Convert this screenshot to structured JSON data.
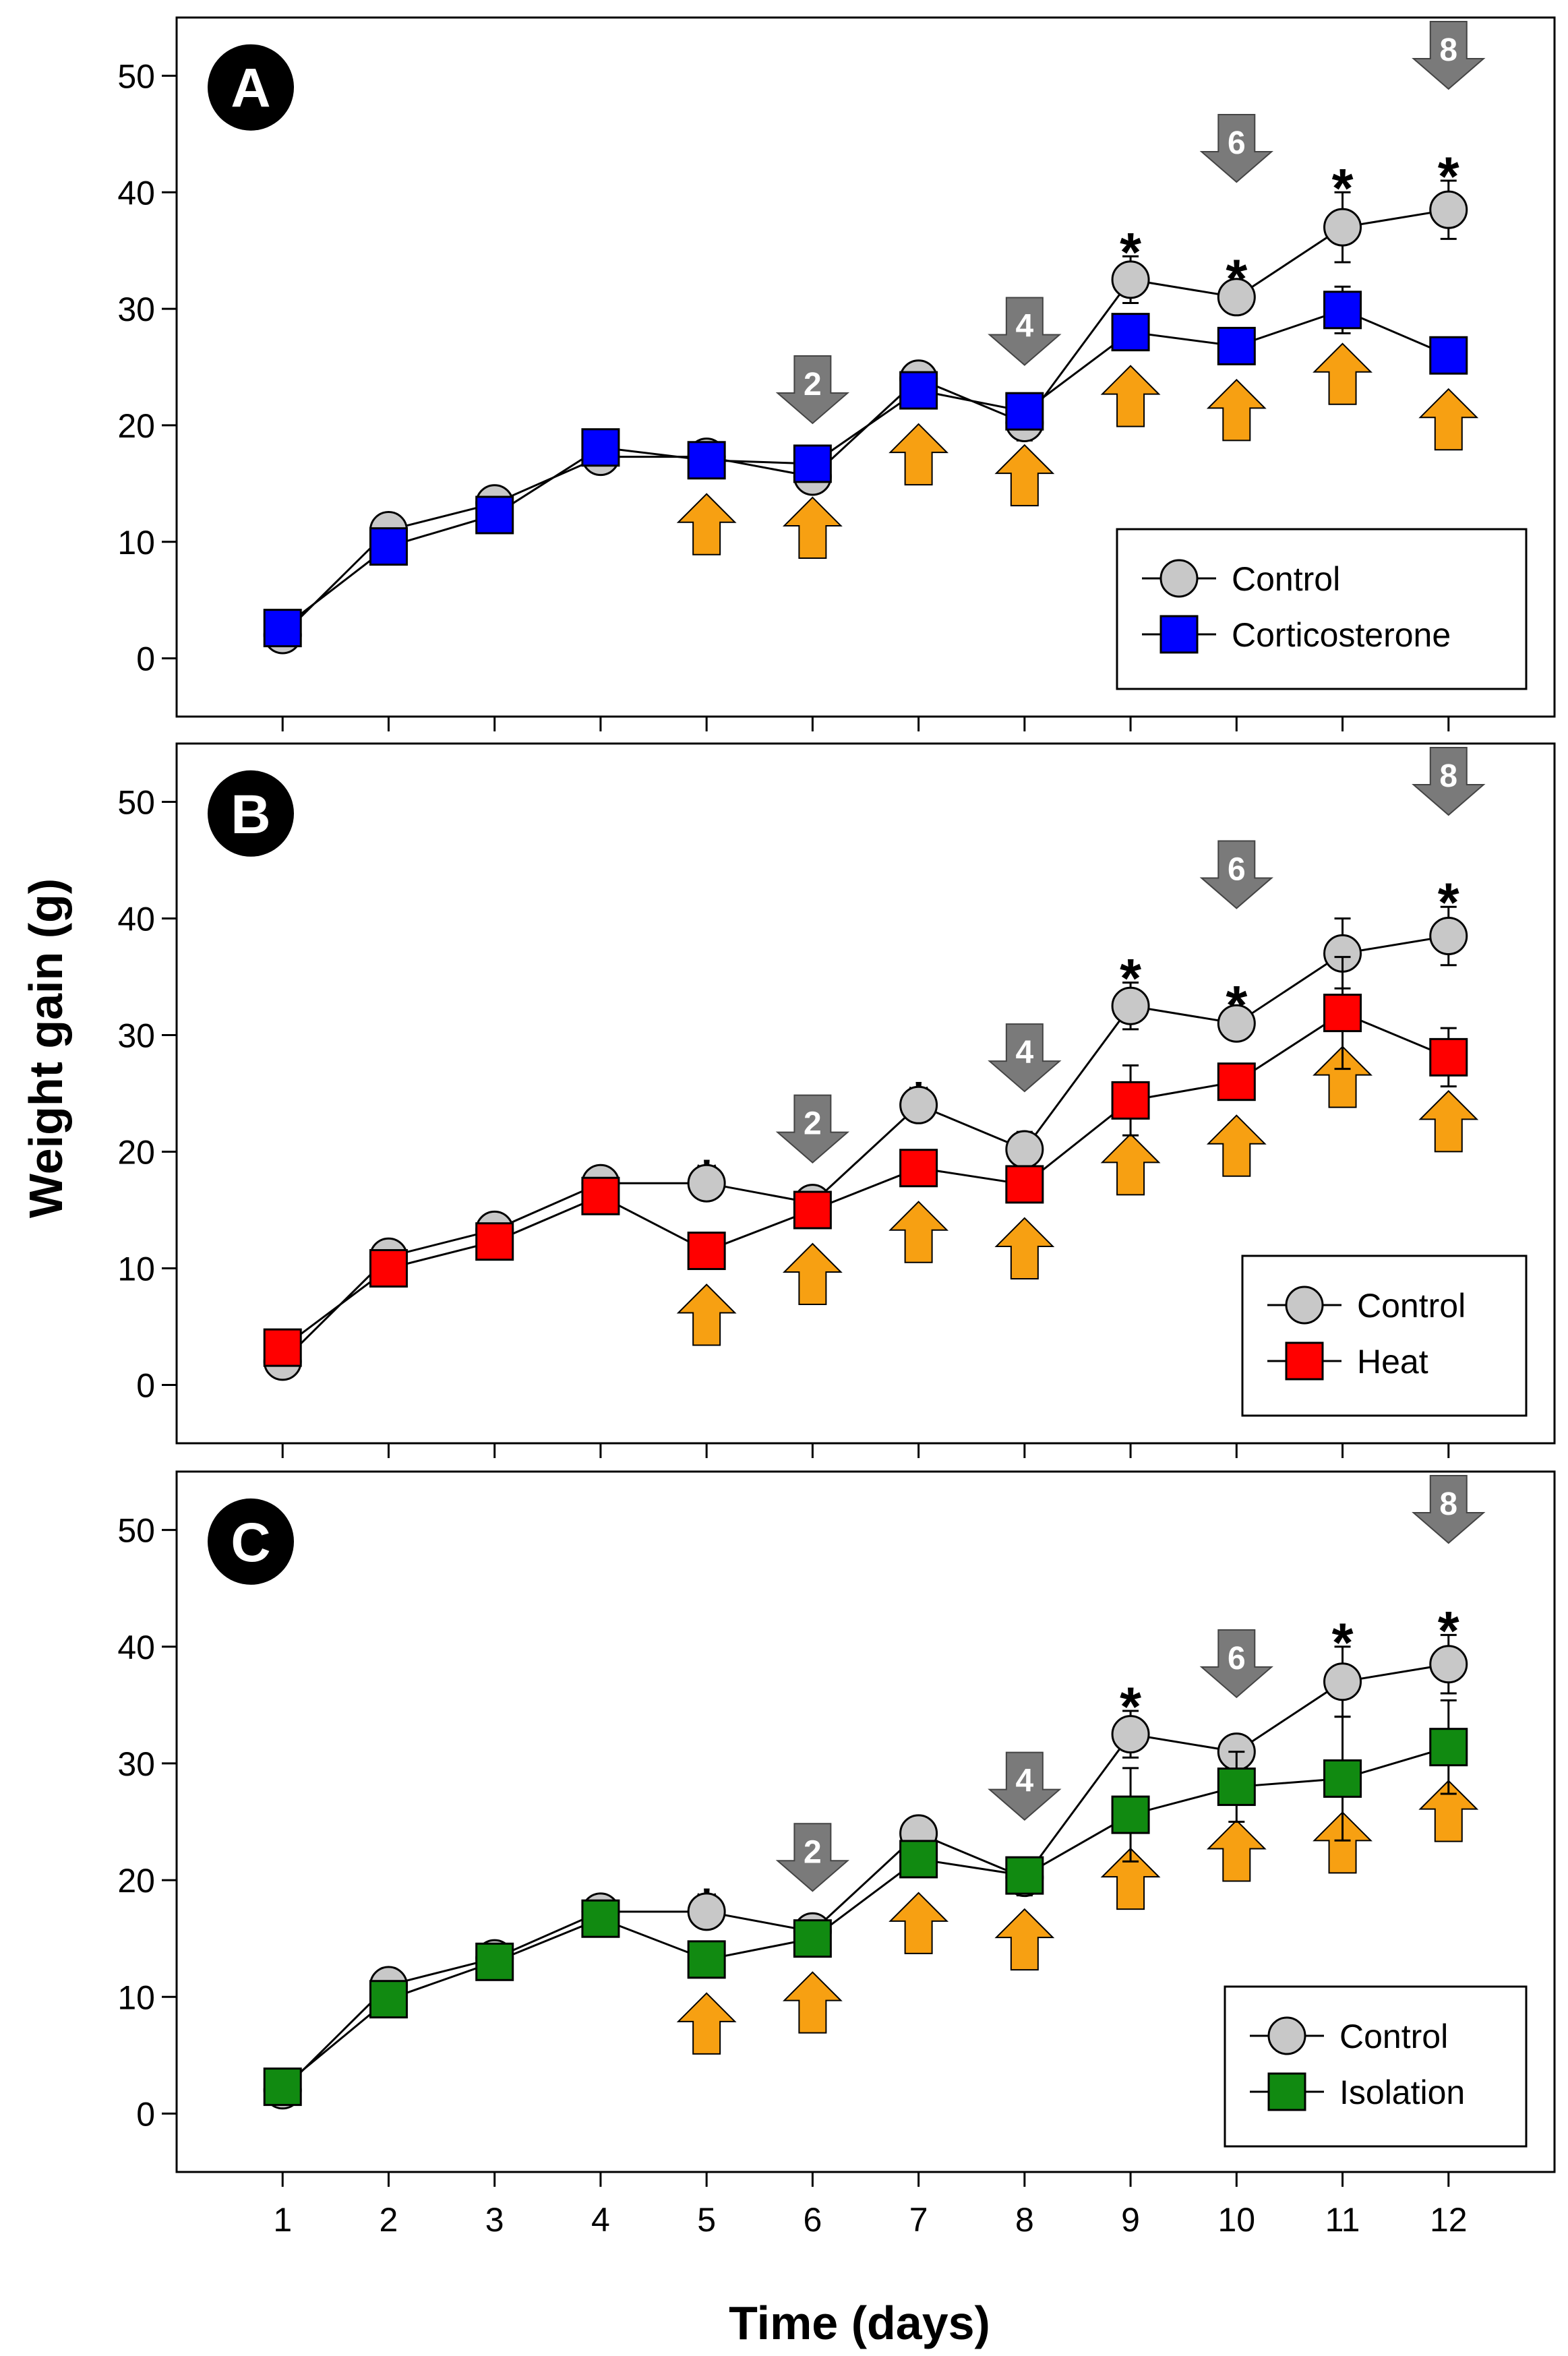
{
  "figure": {
    "ylabel": "Weight gain (g)",
    "xlabel": "Time (days)"
  },
  "colors": {
    "control_fill": "#c8c8c8",
    "corticosterone": "#0000ff",
    "heat": "#ff0000",
    "isolation": "#118a11",
    "up_arrow": "#f7a012",
    "down_arrow": "#7a7a7a"
  },
  "chart_data": [
    {
      "type": "line",
      "panel": "A",
      "x": [
        1,
        2,
        3,
        4,
        5,
        6,
        7,
        8,
        9,
        10,
        11,
        12
      ],
      "xlim": [
        0,
        13
      ],
      "ylim": [
        -5,
        55
      ],
      "yticks": [
        0,
        10,
        20,
        30,
        40,
        50
      ],
      "xticks": [
        1,
        2,
        3,
        4,
        5,
        6,
        7,
        8,
        9,
        10,
        11,
        12
      ],
      "series": [
        {
          "name": "Control",
          "marker": "circle",
          "color": "#c8c8c8",
          "values": [
            2,
            11,
            13.3,
            17.3,
            17.3,
            15.6,
            24,
            20.2,
            32.5,
            31,
            37,
            38.5
          ],
          "errors": [
            0,
            0,
            0,
            0,
            0,
            0,
            0,
            1.5,
            2,
            1.2,
            3,
            2.5
          ]
        },
        {
          "name": "Corticosterone",
          "marker": "square",
          "color": "#0000ff",
          "values": [
            2.6,
            9.6,
            12.3,
            18.1,
            17,
            16.7,
            23,
            21.2,
            28,
            26.8,
            29.9,
            26
          ],
          "errors": [
            0,
            0,
            0,
            0,
            0,
            0,
            0,
            0,
            1.5,
            1,
            2,
            0
          ]
        }
      ],
      "significant_days": [
        9,
        10,
        11,
        12
      ],
      "down_arrows": [
        {
          "day": 6,
          "label": "2"
        },
        {
          "day": 8,
          "label": "4"
        },
        {
          "day": 10,
          "label": "6"
        },
        {
          "day": 12,
          "label": "8"
        }
      ],
      "up_arrow_days": [
        5,
        6,
        7,
        8,
        9,
        10,
        11,
        12
      ],
      "legend": {
        "position": "bottom-right",
        "entries": [
          "Control",
          "Corticosterone"
        ]
      }
    },
    {
      "type": "line",
      "panel": "B",
      "x": [
        1,
        2,
        3,
        4,
        5,
        6,
        7,
        8,
        9,
        10,
        11,
        12
      ],
      "xlim": [
        0,
        13
      ],
      "ylim": [
        -5,
        55
      ],
      "yticks": [
        0,
        10,
        20,
        30,
        40,
        50
      ],
      "xticks": [
        1,
        2,
        3,
        4,
        5,
        6,
        7,
        8,
        9,
        10,
        11,
        12
      ],
      "series": [
        {
          "name": "Control",
          "marker": "circle",
          "color": "#c8c8c8",
          "values": [
            2,
            11,
            13.3,
            17.3,
            17.3,
            15.6,
            24,
            20.2,
            32.5,
            31,
            37,
            38.5
          ],
          "errors": [
            0,
            0,
            0,
            0,
            0,
            0,
            0,
            1.5,
            2,
            1.2,
            3,
            2.5
          ]
        },
        {
          "name": "Heat",
          "marker": "square",
          "color": "#ff0000",
          "values": [
            3.2,
            10,
            12.3,
            16.2,
            11.5,
            15,
            18.6,
            17.2,
            24.4,
            26,
            31.9,
            28.1
          ],
          "errors": [
            0,
            0,
            0,
            0,
            0,
            0,
            0,
            0,
            3,
            1,
            4.8,
            2.5
          ]
        }
      ],
      "significant_days": [
        5,
        7,
        9,
        10,
        12
      ],
      "down_arrows": [
        {
          "day": 6,
          "label": "2"
        },
        {
          "day": 8,
          "label": "4"
        },
        {
          "day": 10,
          "label": "6"
        },
        {
          "day": 12,
          "label": "8"
        }
      ],
      "up_arrow_days": [
        5,
        6,
        7,
        8,
        9,
        10,
        11,
        12
      ],
      "legend": {
        "position": "bottom-right",
        "entries": [
          "Control",
          "Heat"
        ]
      }
    },
    {
      "type": "line",
      "panel": "C",
      "x": [
        1,
        2,
        3,
        4,
        5,
        6,
        7,
        8,
        9,
        10,
        11,
        12
      ],
      "xlim": [
        0,
        13
      ],
      "ylim": [
        -5,
        55
      ],
      "yticks": [
        0,
        10,
        20,
        30,
        40,
        50
      ],
      "xticks": [
        1,
        2,
        3,
        4,
        5,
        6,
        7,
        8,
        9,
        10,
        11,
        12
      ],
      "series": [
        {
          "name": "Control",
          "marker": "circle",
          "color": "#c8c8c8",
          "values": [
            2,
            11,
            13.3,
            17.3,
            17.3,
            15.6,
            24,
            20.2,
            32.5,
            31,
            37,
            38.5
          ],
          "errors": [
            0,
            0,
            0,
            0,
            0,
            0,
            0,
            1.5,
            2,
            1.2,
            3,
            2.5
          ]
        },
        {
          "name": "Isolation",
          "marker": "square",
          "color": "#118a11",
          "values": [
            2.3,
            9.8,
            13,
            16.7,
            13.2,
            15,
            21.8,
            20.4,
            25.6,
            28,
            28.7,
            31.4
          ],
          "errors": [
            0,
            0,
            0,
            0,
            0,
            0,
            0,
            1,
            4,
            3,
            5.3,
            4
          ]
        }
      ],
      "significant_days": [
        5,
        9,
        11,
        12
      ],
      "down_arrows": [
        {
          "day": 6,
          "label": "2"
        },
        {
          "day": 8,
          "label": "4"
        },
        {
          "day": 10,
          "label": "6"
        },
        {
          "day": 12,
          "label": "8"
        }
      ],
      "up_arrow_days": [
        5,
        6,
        7,
        8,
        9,
        10,
        11,
        12
      ],
      "legend": {
        "position": "bottom-right",
        "entries": [
          "Control",
          "Isolation"
        ]
      }
    }
  ]
}
